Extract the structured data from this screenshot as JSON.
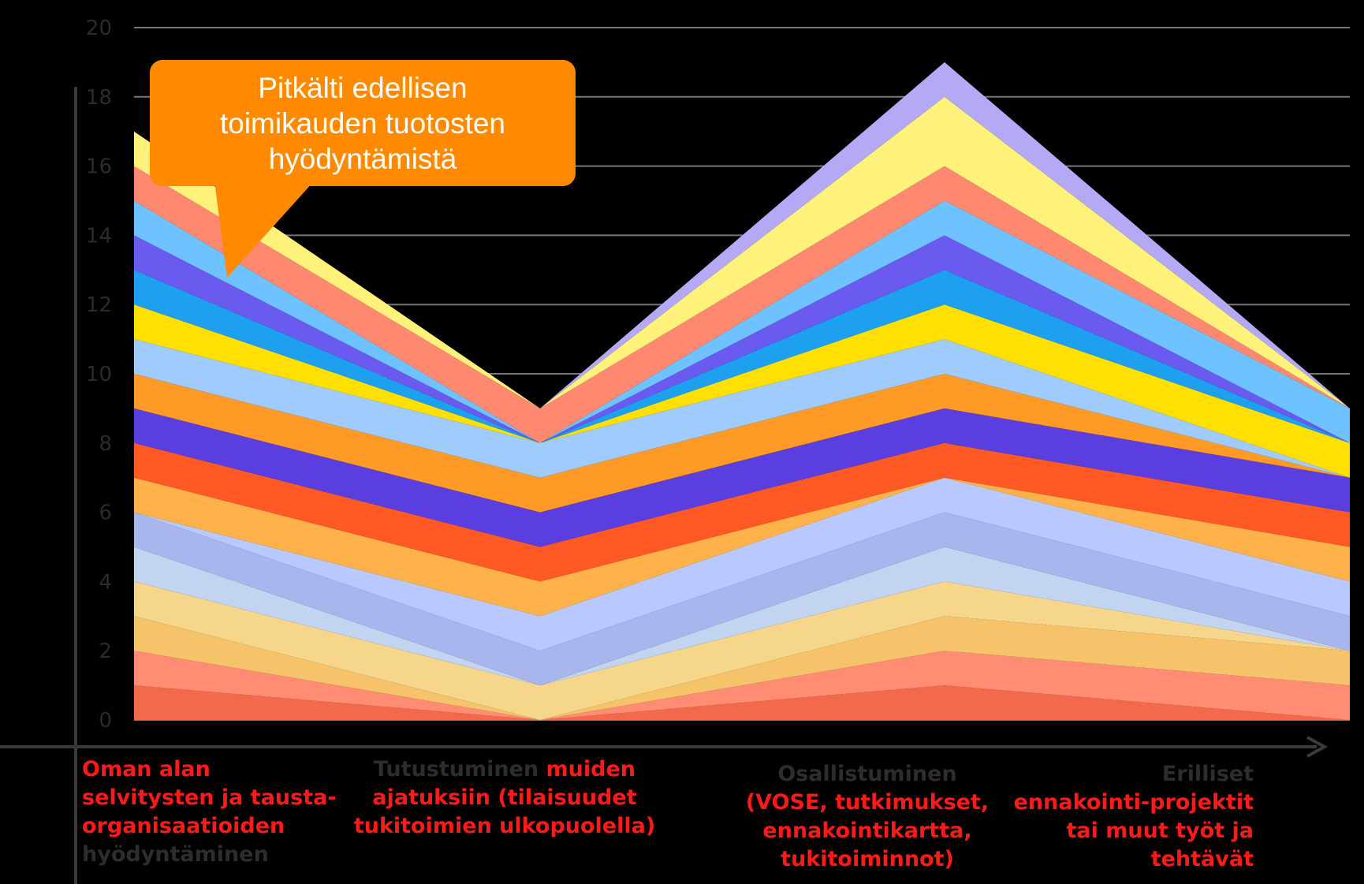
{
  "chart_data": {
    "type": "area",
    "stacked": true,
    "categories": [
      [
        "Oman alan selvitysten ja tausta-organisaatioiden",
        "hyödyntäminen"
      ],
      [
        "Tutustuminen",
        "muiden ajatuksiin (tilaisuudet tukitoimien ulkopuolella)"
      ],
      [
        "Osallistuminen",
        "(VOSE, tutkimukset, ennakointikartta, tukitoiminnot)"
      ],
      [
        "Erilliset",
        "ennakointi-projektit tai muut työt ja tehtävät"
      ]
    ],
    "category_colors": {
      "highlight": "#ff1a1a",
      "normal": "#2d2d2d"
    },
    "ylim": [
      0,
      20
    ],
    "yticks": [
      "0",
      "2",
      "4",
      "6",
      "8",
      "10",
      "12",
      "14",
      "16",
      "18",
      "20"
    ],
    "grid": true,
    "layer_boundaries": [
      [
        0,
        0,
        0,
        0
      ],
      [
        1,
        0,
        1,
        0
      ],
      [
        2,
        0,
        2,
        1
      ],
      [
        3,
        0,
        3,
        2
      ],
      [
        4,
        1,
        4,
        2
      ],
      [
        5,
        1,
        5,
        2
      ],
      [
        6,
        2,
        6,
        3
      ],
      [
        6,
        3,
        7,
        4
      ],
      [
        7,
        4,
        7,
        5
      ],
      [
        8,
        5,
        8,
        6
      ],
      [
        9,
        6,
        9,
        7
      ],
      [
        10,
        7,
        10,
        7
      ],
      [
        11,
        8,
        11,
        7
      ],
      [
        12,
        8,
        12,
        8
      ],
      [
        13,
        8,
        13,
        8
      ],
      [
        14,
        8,
        14,
        8
      ],
      [
        15,
        8,
        15,
        9
      ],
      [
        16,
        9,
        16,
        9
      ],
      [
        17,
        9,
        18,
        9
      ],
      [
        17,
        9,
        19,
        9
      ]
    ],
    "layer_colors": [
      "#f26a4b",
      "#ff8c73",
      "#f6c36a",
      "#f5d68a",
      "#c2d4f0",
      "#a9b6ee",
      "#b9c8ff",
      "#ffb24a",
      "#ff5a26",
      "#5b3ee0",
      "#ff9a26",
      "#9fcbff",
      "#ffe000",
      "#1da0f0",
      "#6a5af0",
      "#6ec2ff",
      "#ff8870",
      "#fff27a",
      "#b3a9f5",
      "#b8ddff"
    ],
    "annotation": "Pitkälti edellisen toimikauden tuotosten hyödyntämistä"
  },
  "callout": {
    "lines": [
      "Pitkälti edellisen",
      "toimikauden tuotosten",
      "hyödyntämistä"
    ],
    "color": "#ff8a00"
  },
  "labels": {
    "cat0_red": "Oman alan selvitysten ja tausta-organisaatioiden",
    "cat0_grey": "hyödyntäminen",
    "cat1_grey": "Tutustuminen",
    "cat1_red": "muiden ajatuksiin (tilaisuudet tukitoimien ulkopuolella)",
    "cat2_grey": "Osallistuminen",
    "cat2_red": "(VOSE, tutkimukset, ennakointikartta, tukitoiminnot)",
    "cat3_grey": "Erilliset",
    "cat3_red": "ennakointi-projektit tai muut työt ja tehtävät"
  }
}
